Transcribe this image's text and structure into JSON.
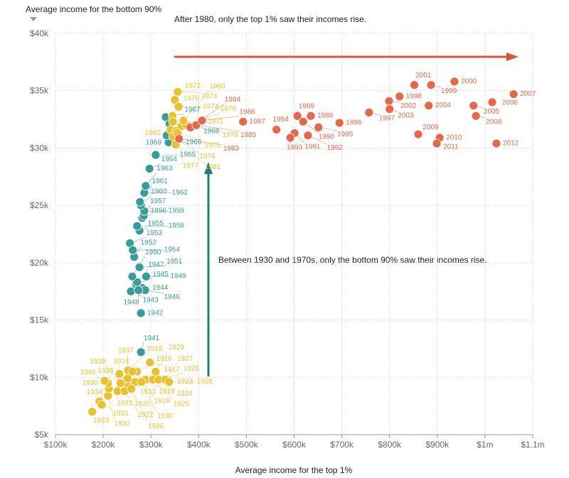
{
  "chart_data": {
    "type": "scatter",
    "xlabel": "Average income for the top 1%",
    "ylabel": "Average income for the bottom 90%",
    "xlim": [
      100,
      1100
    ],
    "ylim": [
      5,
      40
    ],
    "x_unit": "thousand USD",
    "y_unit": "thousand USD",
    "x_ticks": [
      "$100k",
      "$200k",
      "$300k",
      "$400k",
      "$500k",
      "$600k",
      "$700k",
      "$800k",
      "$900k",
      "$1m",
      "$1.1m"
    ],
    "x_tick_values": [
      100,
      200,
      300,
      400,
      500,
      600,
      700,
      800,
      900,
      1000,
      1100
    ],
    "y_ticks": [
      "$5k",
      "$10k",
      "$15k",
      "$20k",
      "$25k",
      "$30k",
      "$35k",
      "$40k"
    ],
    "y_tick_values": [
      5,
      10,
      15,
      20,
      25,
      30,
      35,
      40
    ],
    "grid": true,
    "colors": {
      "yellow": "#ebc02e",
      "teal": "#3a9c99",
      "red": "#e4694c",
      "red_arrow": "#d9533b",
      "teal_arrow": "#1f7d7a"
    },
    "annotations": [
      "After 1980, only the top 1% saw their incomes rise.",
      "Between 1930 and 1970s, only the bottom 90% saw their incomes rise."
    ],
    "points": [
      {
        "year": "1913",
        "x": 249,
        "y": 9.8,
        "group": "yellow"
      },
      {
        "year": "1914",
        "x": 234,
        "y": 10.3,
        "group": "yellow"
      },
      {
        "year": "1915",
        "x": 252,
        "y": 10.6,
        "group": "yellow"
      },
      {
        "year": "1916",
        "x": 271,
        "y": 10.5,
        "group": "yellow"
      },
      {
        "year": "1917",
        "x": 298,
        "y": 11.3,
        "group": "yellow"
      },
      {
        "year": "1918",
        "x": 261,
        "y": 10.5,
        "group": "yellow"
      },
      {
        "year": "1919",
        "x": 282,
        "y": 9.7,
        "group": "yellow"
      },
      {
        "year": "1920",
        "x": 252,
        "y": 9.2,
        "group": "yellow"
      },
      {
        "year": "1921",
        "x": 230,
        "y": 8.8,
        "group": "yellow"
      },
      {
        "year": "1922",
        "x": 245,
        "y": 8.8,
        "group": "yellow"
      },
      {
        "year": "1923",
        "x": 267,
        "y": 9.6,
        "group": "yellow"
      },
      {
        "year": "1924",
        "x": 289,
        "y": 9.8,
        "group": "yellow"
      },
      {
        "year": "1925",
        "x": 304,
        "y": 9.8,
        "group": "yellow"
      },
      {
        "year": "1926",
        "x": 316,
        "y": 9.8,
        "group": "yellow"
      },
      {
        "year": "1927",
        "x": 330,
        "y": 9.8,
        "group": "yellow"
      },
      {
        "year": "1928",
        "x": 338,
        "y": 9.6,
        "group": "yellow"
      },
      {
        "year": "1929",
        "x": 310,
        "y": 10.5,
        "group": "yellow"
      },
      {
        "year": "1930",
        "x": 280,
        "y": 9.6,
        "group": "yellow"
      },
      {
        "year": "1931",
        "x": 192,
        "y": 7.9,
        "group": "yellow"
      },
      {
        "year": "1932",
        "x": 210,
        "y": 8.4,
        "group": "yellow"
      },
      {
        "year": "1933",
        "x": 177,
        "y": 7.0,
        "group": "yellow"
      },
      {
        "year": "1934",
        "x": 197,
        "y": 7.6,
        "group": "yellow"
      },
      {
        "year": "1935",
        "x": 212,
        "y": 9.0,
        "group": "yellow"
      },
      {
        "year": "1936",
        "x": 259,
        "y": 9.0,
        "group": "yellow"
      },
      {
        "year": "1937",
        "x": 251,
        "y": 9.9,
        "group": "yellow"
      },
      {
        "year": "1938",
        "x": 236,
        "y": 9.5,
        "group": "yellow"
      },
      {
        "year": "1939",
        "x": 210,
        "y": 9.5,
        "group": "yellow"
      },
      {
        "year": "1940",
        "x": 203,
        "y": 9.7,
        "group": "yellow"
      },
      {
        "year": "1941",
        "x": 279,
        "y": 12.2,
        "group": "teal"
      },
      {
        "year": "1942",
        "x": 279,
        "y": 15.6,
        "group": "teal"
      },
      {
        "year": "1943",
        "x": 258,
        "y": 17.5,
        "group": "teal"
      },
      {
        "year": "1944",
        "x": 282,
        "y": 17.8,
        "group": "teal"
      },
      {
        "year": "1945",
        "x": 269,
        "y": 18.1,
        "group": "teal"
      },
      {
        "year": "1946",
        "x": 288,
        "y": 17.6,
        "group": "teal"
      },
      {
        "year": "1947",
        "x": 271,
        "y": 18.3,
        "group": "teal"
      },
      {
        "year": "1948",
        "x": 274,
        "y": 17.6,
        "group": "teal"
      },
      {
        "year": "1949",
        "x": 290,
        "y": 18.8,
        "group": "teal"
      },
      {
        "year": "1950",
        "x": 261,
        "y": 18.8,
        "group": "teal"
      },
      {
        "year": "1951",
        "x": 276,
        "y": 19.6,
        "group": "teal"
      },
      {
        "year": "1952",
        "x": 265,
        "y": 20.5,
        "group": "teal"
      },
      {
        "year": "1953",
        "x": 256,
        "y": 21.7,
        "group": "teal"
      },
      {
        "year": "1954",
        "x": 262,
        "y": 21.1,
        "group": "teal"
      },
      {
        "year": "1955",
        "x": 276,
        "y": 22.8,
        "group": "teal"
      },
      {
        "year": "1956",
        "x": 282,
        "y": 23.9,
        "group": "teal"
      },
      {
        "year": "1957",
        "x": 285,
        "y": 24.1,
        "group": "teal"
      },
      {
        "year": "1958",
        "x": 271,
        "y": 23.2,
        "group": "teal"
      },
      {
        "year": "1959",
        "x": 286,
        "y": 24.5,
        "group": "teal"
      },
      {
        "year": "1960",
        "x": 279,
        "y": 25.0,
        "group": "teal"
      },
      {
        "year": "1961",
        "x": 277,
        "y": 25.3,
        "group": "teal"
      },
      {
        "year": "1962",
        "x": 286,
        "y": 26.1,
        "group": "teal"
      },
      {
        "year": "1963",
        "x": 289,
        "y": 26.7,
        "group": "teal"
      },
      {
        "year": "1964",
        "x": 297,
        "y": 28.2,
        "group": "teal"
      },
      {
        "year": "1965",
        "x": 310,
        "y": 29.4,
        "group": "teal"
      },
      {
        "year": "1966",
        "x": 337,
        "y": 30.5,
        "group": "teal"
      },
      {
        "year": "1967",
        "x": 331,
        "y": 32.7,
        "group": "teal"
      },
      {
        "year": "1968",
        "x": 339,
        "y": 32.1,
        "group": "teal"
      },
      {
        "year": "1969",
        "x": 333,
        "y": 31.1,
        "group": "teal"
      },
      {
        "year": "1970",
        "x": 345,
        "y": 32.8,
        "group": "yellow"
      },
      {
        "year": "1971",
        "x": 346,
        "y": 32.3,
        "group": "yellow"
      },
      {
        "year": "1972",
        "x": 350,
        "y": 34.2,
        "group": "yellow"
      },
      {
        "year": "1973",
        "x": 356,
        "y": 34.9,
        "group": "yellow"
      },
      {
        "year": "1974",
        "x": 358,
        "y": 33.6,
        "group": "yellow"
      },
      {
        "year": "1975",
        "x": 341,
        "y": 31.6,
        "group": "yellow"
      },
      {
        "year": "1976",
        "x": 346,
        "y": 31.0,
        "group": "yellow"
      },
      {
        "year": "1977",
        "x": 353,
        "y": 31.5,
        "group": "yellow"
      },
      {
        "year": "1978",
        "x": 364,
        "y": 31.9,
        "group": "yellow"
      },
      {
        "year": "1979",
        "x": 374,
        "y": 32.0,
        "group": "yellow"
      },
      {
        "year": "1980",
        "x": 368,
        "y": 32.4,
        "group": "yellow"
      },
      {
        "year": "1981",
        "x": 352,
        "y": 30.3,
        "group": "yellow"
      },
      {
        "year": "1982",
        "x": 356,
        "y": 31.3,
        "group": "yellow"
      },
      {
        "year": "1983",
        "x": 359,
        "y": 30.8,
        "group": "red"
      },
      {
        "year": "1984",
        "x": 383,
        "y": 31.8,
        "group": "red"
      },
      {
        "year": "1985",
        "x": 395,
        "y": 32.0,
        "group": "red"
      },
      {
        "year": "1986",
        "x": 407,
        "y": 32.4,
        "group": "red"
      },
      {
        "year": "1987",
        "x": 493,
        "y": 32.3,
        "group": "red"
      },
      {
        "year": "1988",
        "x": 635,
        "y": 32.8,
        "group": "red"
      },
      {
        "year": "1989",
        "x": 607,
        "y": 32.8,
        "group": "red"
      },
      {
        "year": "1990",
        "x": 619,
        "y": 32.3,
        "group": "red"
      },
      {
        "year": "1991",
        "x": 601,
        "y": 31.3,
        "group": "red"
      },
      {
        "year": "1992",
        "x": 629,
        "y": 31.1,
        "group": "red"
      },
      {
        "year": "1993",
        "x": 592,
        "y": 30.9,
        "group": "red"
      },
      {
        "year": "1994",
        "x": 563,
        "y": 31.6,
        "group": "red"
      },
      {
        "year": "1995",
        "x": 651,
        "y": 31.8,
        "group": "red"
      },
      {
        "year": "1996",
        "x": 695,
        "y": 32.2,
        "group": "red"
      },
      {
        "year": "1997",
        "x": 757,
        "y": 33.1,
        "group": "red"
      },
      {
        "year": "1998",
        "x": 821,
        "y": 34.5,
        "group": "red"
      },
      {
        "year": "1999",
        "x": 887,
        "y": 35.5,
        "group": "red"
      },
      {
        "year": "2000",
        "x": 936,
        "y": 35.8,
        "group": "red"
      },
      {
        "year": "2001",
        "x": 852,
        "y": 35.5,
        "group": "red"
      },
      {
        "year": "2002",
        "x": 799,
        "y": 34.1,
        "group": "red"
      },
      {
        "year": "2003",
        "x": 800,
        "y": 33.4,
        "group": "red"
      },
      {
        "year": "2004",
        "x": 882,
        "y": 33.7,
        "group": "red"
      },
      {
        "year": "2005",
        "x": 976,
        "y": 33.7,
        "group": "red"
      },
      {
        "year": "2006",
        "x": 1015,
        "y": 34.0,
        "group": "red"
      },
      {
        "year": "2007",
        "x": 1060,
        "y": 34.7,
        "group": "red"
      },
      {
        "year": "2008",
        "x": 981,
        "y": 32.8,
        "group": "red"
      },
      {
        "year": "2009",
        "x": 860,
        "y": 31.2,
        "group": "red"
      },
      {
        "year": "2010",
        "x": 905,
        "y": 30.9,
        "group": "red"
      },
      {
        "year": "2011",
        "x": 899,
        "y": 30.4,
        "group": "red"
      },
      {
        "year": "2012",
        "x": 1024,
        "y": 30.4,
        "group": "red"
      }
    ]
  }
}
